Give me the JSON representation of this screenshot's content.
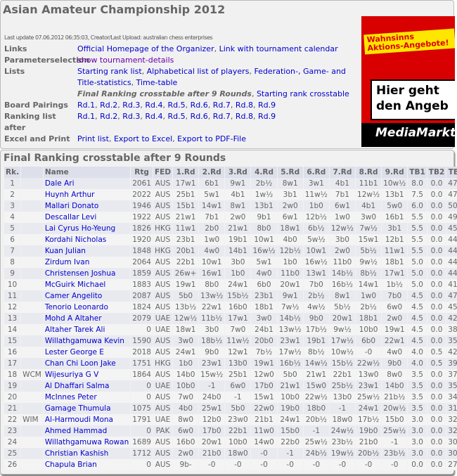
{
  "title": "Asian Amateur Championship 2012",
  "last_update": "Last update 07.06.2012 06:35:03, Creator/Last Upload: australian chess enterprises",
  "info": [
    {
      "label": "Links",
      "links": [
        "Official Homepage of the Organizer",
        "Link with tournament calendar"
      ]
    },
    {
      "label": "Parameterselection",
      "links": [
        "show tournament-details"
      ]
    },
    {
      "label": "Lists",
      "links": [
        "Starting rank list",
        "Alphabetical list of players",
        "Federation-, Game- and Title-statistics",
        "Time-table"
      ]
    },
    {
      "label": "",
      "current": "Final Ranking crosstable after 9 Rounds",
      "links": [
        "Starting rank crosstable"
      ]
    },
    {
      "label": "Board Pairings",
      "links": [
        "Rd.1",
        "Rd.2",
        "Rd.3",
        "Rd.4",
        "Rd.5",
        "Rd.6",
        "Rd.7",
        "Rd.8",
        "Rd.9"
      ]
    },
    {
      "label": "Ranking list after",
      "links": [
        "Rd.1",
        "Rd.2",
        "Rd.3",
        "Rd.4",
        "Rd.5",
        "Rd.6",
        "Rd.7",
        "Rd.8",
        "Rd.9"
      ]
    },
    {
      "label": "Excel and Print",
      "links": [
        "Print list",
        "Export to Excel",
        "Export to PDF-File"
      ]
    }
  ],
  "ad": {
    "badge": "Wahnsinns Aktions-Angebote!",
    "headline": "Hier geht den Angeb",
    "brand": "MediaMarkt"
  },
  "section_title": "Final Ranking crosstable after 9 Rounds",
  "columns": [
    "Rk.",
    "",
    "Name",
    "Rtg",
    "FED",
    "1.Rd",
    "2.Rd",
    "3.Rd",
    "4.Rd",
    "5.Rd",
    "6.Rd",
    "7.Rd",
    "8.Rd",
    "9.Rd",
    "TB1",
    "TB2",
    "TB3"
  ],
  "rows": [
    [
      "1",
      "",
      "Dale Ari",
      "2061",
      "AUS",
      "17w1",
      "6b1",
      "9w1",
      "2b½",
      "8w1",
      "3w1",
      "4b1",
      "11b1",
      "10w½",
      "8.0",
      "0.0",
      "47.5"
    ],
    [
      "2",
      "",
      "Huynh Arthur",
      "2022",
      "AUS",
      "25b1",
      "5w1",
      "4b1",
      "1w½",
      "3b1",
      "11w½",
      "7b1",
      "12w½",
      "13b1",
      "7.5",
      "0.0",
      "47.0"
    ],
    [
      "3",
      "",
      "Mallari Donato",
      "1946",
      "AUS",
      "15b1",
      "14w1",
      "8w1",
      "13b1",
      "2w0",
      "1b0",
      "6w1",
      "4b1",
      "5w0",
      "6.0",
      "0.0",
      "50.5"
    ],
    [
      "4",
      "",
      "Descallar Levi",
      "1922",
      "AUS",
      "21w1",
      "7b1",
      "2w0",
      "9b1",
      "6w1",
      "12b½",
      "1w0",
      "3w0",
      "16b1",
      "5.5",
      "0.0",
      "49.0"
    ],
    [
      "5",
      "",
      "Lai Cyrus Ho-Yeung",
      "1826",
      "HKG",
      "11w1",
      "2b0",
      "21w1",
      "8b0",
      "18w1",
      "6b½",
      "12w½",
      "7w½",
      "3b1",
      "5.5",
      "0.0",
      "45.0"
    ],
    [
      "6",
      "",
      "Kordahi Nicholas",
      "1920",
      "AUS",
      "23b1",
      "1w0",
      "19b1",
      "10w1",
      "4b0",
      "5w½",
      "3b0",
      "15w1",
      "12b1",
      "5.5",
      "0.0",
      "44.5"
    ],
    [
      "7",
      "",
      "Kuan Julian",
      "1848",
      "HKG",
      "20b1",
      "4w0",
      "14b1",
      "16w½",
      "12b½",
      "10w1",
      "2w0",
      "5b½",
      "11w1",
      "5.5",
      "0.0",
      "44.5"
    ],
    [
      "8",
      "",
      "Zirdum Ivan",
      "2064",
      "AUS",
      "22b1",
      "10w1",
      "3b0",
      "5w1",
      "1b0",
      "16w½",
      "11b0",
      "9w½",
      "18b1",
      "5.0",
      "0.0",
      "44.5"
    ],
    [
      "9",
      "",
      "Christensen Joshua",
      "1859",
      "AUS",
      "26w+",
      "16w1",
      "1b0",
      "4w0",
      "11b0",
      "13w1",
      "14b½",
      "8b½",
      "17w1",
      "5.0",
      "0.0",
      "44.5"
    ],
    [
      "10",
      "",
      "McGuirk Michael",
      "1883",
      "AUS",
      "19w1",
      "8b0",
      "24w1",
      "6b0",
      "20w1",
      "7b0",
      "16b½",
      "14w1",
      "1b½",
      "5.0",
      "0.0",
      "41.5"
    ],
    [
      "11",
      "",
      "Camer Angelito",
      "2087",
      "AUS",
      "5b0",
      "13w½",
      "15b½",
      "23b1",
      "9w1",
      "2b½",
      "8w1",
      "1w0",
      "7b0",
      "4.5",
      "0.0",
      "47.5"
    ],
    [
      "12",
      "",
      "Tenorio Leonardo",
      "1824",
      "AUS",
      "13b½",
      "22w1",
      "16b0",
      "18b1",
      "7w½",
      "4w½",
      "5b½",
      "2b½",
      "6w0",
      "4.5",
      "0.0",
      "45.0"
    ],
    [
      "13",
      "",
      "Mohd A Altaher",
      "2079",
      "UAE",
      "12w½",
      "11b½",
      "17w1",
      "3w0",
      "14b½",
      "9b0",
      "20w1",
      "18b1",
      "2w0",
      "4.5",
      "0.0",
      "42.0"
    ],
    [
      "14",
      "",
      "Altaher Tarek Ali",
      "0",
      "UAE",
      "18w1",
      "3b0",
      "7w0",
      "24b1",
      "13w½",
      "17b½",
      "9w½",
      "10b0",
      "19w1",
      "4.5",
      "0.0",
      "38.5"
    ],
    [
      "15",
      "",
      "Willathgamuwa Kevin",
      "1590",
      "AUS",
      "3w0",
      "18b½",
      "11w½",
      "20b0",
      "23w1",
      "19b1",
      "17w½",
      "6b0",
      "22w1",
      "4.5",
      "0.0",
      "35.0"
    ],
    [
      "16",
      "",
      "Lester George E",
      "2018",
      "AUS",
      "24w1",
      "9b0",
      "12w1",
      "7b½",
      "17w½",
      "8b½",
      "10w½",
      "-0",
      "4w0",
      "4.0",
      "0.5",
      "42.0"
    ],
    [
      "17",
      "",
      "Chan Chi Loon Jake",
      "1751",
      "HKG",
      "1b0",
      "23w1",
      "13b0",
      "19w1",
      "16b½",
      "14w½",
      "15b½",
      "22w½",
      "9b0",
      "4.0",
      "0.5",
      "39.0"
    ],
    [
      "18",
      "WCM",
      "Wijesuriya G V",
      "1864",
      "AUS",
      "14b0",
      "15w½",
      "25b1",
      "12w0",
      "5b0",
      "21w1",
      "22b1",
      "13w0",
      "8w0",
      "3.5",
      "0.0",
      "37.5"
    ],
    [
      "19",
      "",
      "Al Dhaffari Salma",
      "0",
      "UAE",
      "10b0",
      "-1",
      "6w0",
      "17b0",
      "21w1",
      "15w0",
      "25b½",
      "23w1",
      "14b0",
      "3.5",
      "0.0",
      "35.5"
    ],
    [
      "20",
      "",
      "McInnes Peter",
      "0",
      "AUS",
      "7w0",
      "24b0",
      "-1",
      "15w1",
      "10b0",
      "22w½",
      "13b0",
      "25w½",
      "21b½",
      "3.5",
      "0.0",
      "34.0"
    ],
    [
      "21",
      "",
      "Gamage Thumula",
      "1075",
      "AUS",
      "4b0",
      "25w1",
      "5b0",
      "22w0",
      "19b0",
      "18b0",
      "-1",
      "24w1",
      "20w½",
      "3.5",
      "0.0",
      "31.0"
    ],
    [
      "22",
      "WIM",
      "Al-Harmoudi Mona",
      "1791",
      "UAE",
      "8w0",
      "12b0",
      "23w0",
      "21b1",
      "24w1",
      "20b½",
      "18w0",
      "17b½",
      "15b0",
      "3.0",
      "0.0",
      "32.5"
    ],
    [
      "23",
      "",
      "Ahmed Hammad",
      "0",
      "PAK",
      "6w0",
      "17b0",
      "22b1",
      "11w0",
      "15b0",
      "-1",
      "24w½",
      "19b0",
      "25w½",
      "3.0",
      "0.0",
      "32.5"
    ],
    [
      "24",
      "",
      "Willathgamuwa Rowan",
      "1689",
      "AUS",
      "16b0",
      "20w1",
      "10b0",
      "14w0",
      "22b0",
      "25w½",
      "23b½",
      "21b0",
      "-1",
      "3.0",
      "0.0",
      "30.5"
    ],
    [
      "25",
      "",
      "Christian Kashish",
      "1712",
      "AUS",
      "2w0",
      "21b0",
      "18w0",
      "-0",
      "-1",
      "24b½",
      "19w½",
      "20b½",
      "23b½",
      "3.0",
      "0.0",
      "30.5"
    ],
    [
      "26",
      "",
      "Chapula Brian",
      "0",
      "AUS",
      "9b-",
      "-0",
      "-0",
      "-0",
      "-0",
      "-0",
      "-0",
      "-0",
      "-0",
      "0.0",
      "0.0",
      "27.0"
    ]
  ]
}
